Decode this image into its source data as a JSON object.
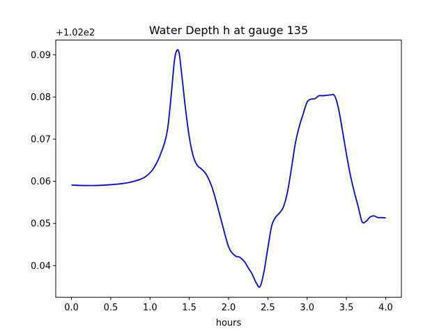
{
  "chart_data": {
    "type": "line",
    "title": "Water Depth h at gauge 135",
    "xlabel": "hours",
    "ylabel": "",
    "offset_label": "+1.02e2",
    "xlim": [
      -0.2,
      4.2
    ],
    "ylim": [
      0.0325,
      0.0935
    ],
    "x_ticks": [
      0.0,
      0.5,
      1.0,
      1.5,
      2.0,
      2.5,
      3.0,
      3.5,
      4.0
    ],
    "x_tick_labels": [
      "0.0",
      "0.5",
      "1.0",
      "1.5",
      "2.0",
      "2.5",
      "3.0",
      "3.5",
      "4.0"
    ],
    "y_ticks": [
      0.04,
      0.05,
      0.06,
      0.07,
      0.08,
      0.09
    ],
    "y_tick_labels": [
      "0.04",
      "0.05",
      "0.06",
      "0.07",
      "0.08",
      "0.09"
    ],
    "grid": false,
    "series": [
      {
        "color": "#0000ff",
        "x": [
          0.0,
          0.25,
          0.5,
          0.7,
          0.85,
          0.95,
          1.05,
          1.15,
          1.22,
          1.27,
          1.31,
          1.34,
          1.37,
          1.4,
          1.45,
          1.5,
          1.55,
          1.6,
          1.65,
          1.72,
          1.8,
          1.9,
          2.0,
          2.08,
          2.14,
          2.2,
          2.25,
          2.3,
          2.35,
          2.4,
          2.45,
          2.5,
          2.55,
          2.6,
          2.65,
          2.7,
          2.75,
          2.8,
          2.85,
          2.9,
          2.95,
          3.0,
          3.05,
          3.1,
          3.15,
          3.2,
          3.25,
          3.3,
          3.35,
          3.4,
          3.45,
          3.5,
          3.55,
          3.6,
          3.65,
          3.7,
          3.75,
          3.8,
          3.85,
          3.9,
          3.95,
          4.0
        ],
        "y": [
          0.0591,
          0.059,
          0.0592,
          0.0596,
          0.0603,
          0.0612,
          0.0632,
          0.0672,
          0.072,
          0.0805,
          0.0885,
          0.091,
          0.0905,
          0.086,
          0.0775,
          0.0705,
          0.066,
          0.0638,
          0.063,
          0.0615,
          0.058,
          0.0512,
          0.0445,
          0.0424,
          0.042,
          0.041,
          0.0395,
          0.038,
          0.036,
          0.035,
          0.0385,
          0.0442,
          0.0495,
          0.0515,
          0.0525,
          0.054,
          0.0575,
          0.063,
          0.069,
          0.073,
          0.076,
          0.0788,
          0.0795,
          0.0796,
          0.0803,
          0.0803,
          0.0804,
          0.0805,
          0.0803,
          0.0772,
          0.072,
          0.0665,
          0.0615,
          0.0575,
          0.054,
          0.0504,
          0.0505,
          0.0515,
          0.0518,
          0.0514,
          0.0514,
          0.0513
        ]
      }
    ]
  }
}
